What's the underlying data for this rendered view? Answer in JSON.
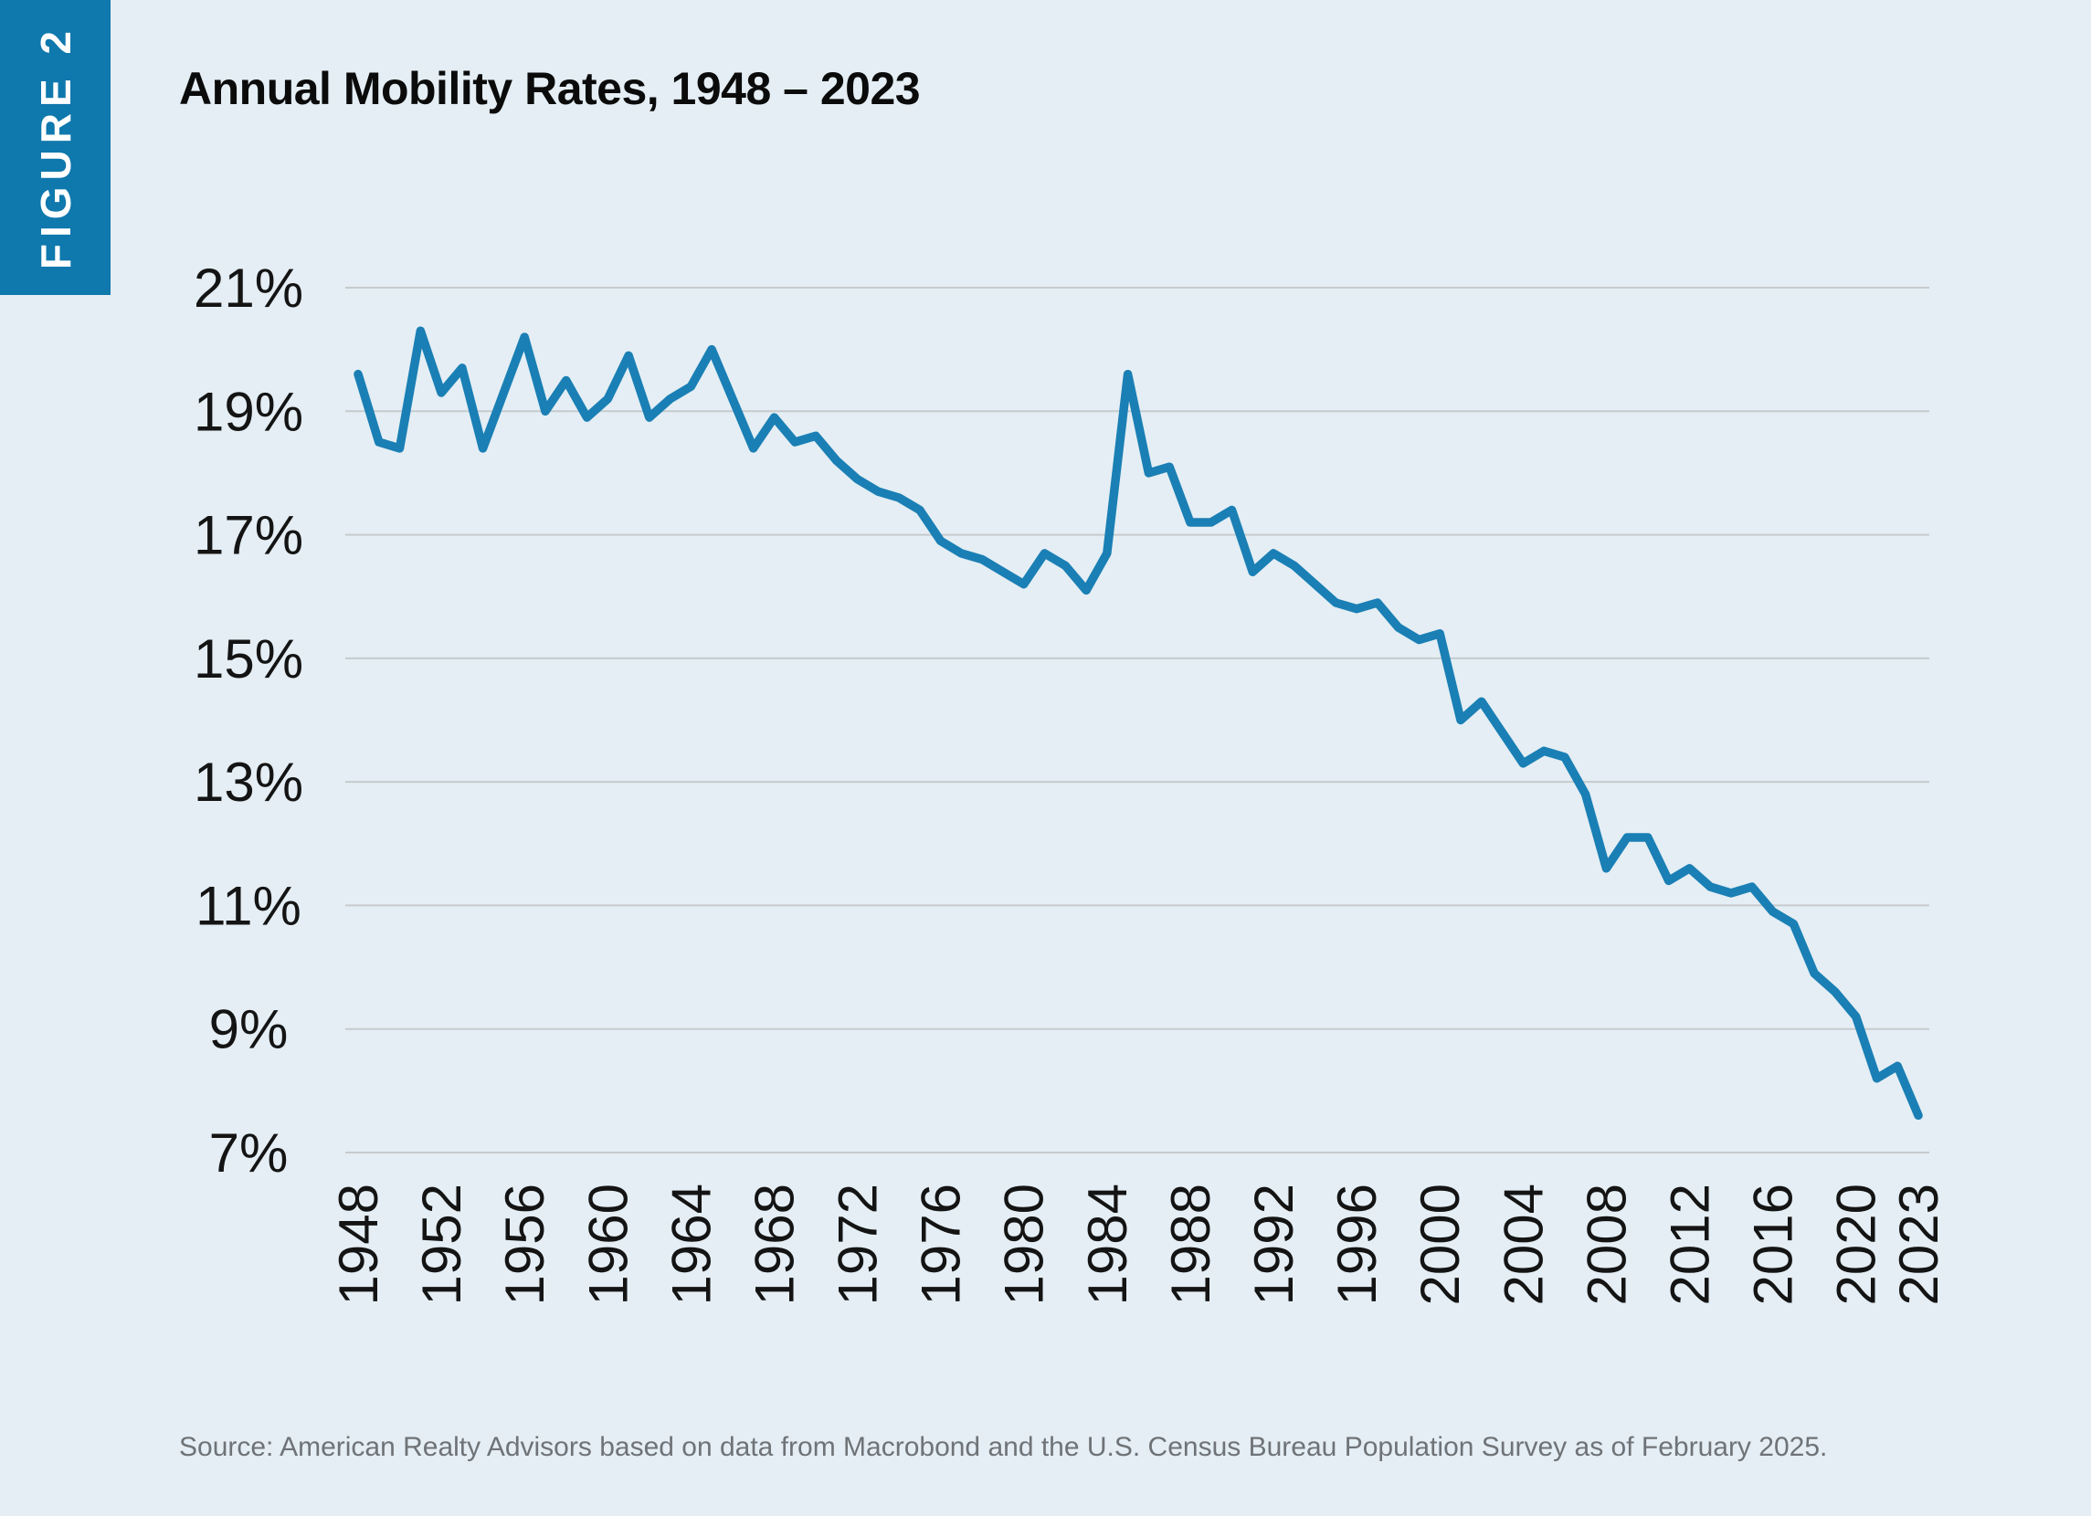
{
  "figure_label": "FIGURE 2",
  "title": "Annual Mobility Rates, 1948 – 2023",
  "source": "Source: American Realty Advisors based on data from Macrobond and the U.S. Census Bureau Population Survey as of February 2025.",
  "colors": {
    "page_bg": "#e4eef4",
    "tab_bg": "#0f78ad",
    "tab_text": "#ffffff",
    "line": "#1a7fb4",
    "grid": "#c6cbce",
    "axis_text": "#141414",
    "title_text": "#0b0b0b",
    "source_text": "#6f7377"
  },
  "chart_data": {
    "type": "line",
    "title": "Annual Mobility Rates, 1948 – 2023",
    "series_name": "Annual mobility rate",
    "unit": "%",
    "grid": "horizontal",
    "legend": "none",
    "ylim": [
      7,
      21
    ],
    "yticks": [
      21,
      19,
      17,
      15,
      13,
      11,
      9,
      7
    ],
    "ytick_suffix": "%",
    "xticks": [
      1948,
      1952,
      1956,
      1960,
      1964,
      1968,
      1972,
      1976,
      1980,
      1984,
      1988,
      1992,
      1996,
      2000,
      2004,
      2008,
      2012,
      2016,
      2020,
      2023
    ],
    "years": [
      1948,
      1949,
      1950,
      1951,
      1952,
      1953,
      1954,
      1955,
      1956,
      1957,
      1958,
      1959,
      1960,
      1961,
      1962,
      1963,
      1964,
      1965,
      1966,
      1967,
      1968,
      1969,
      1970,
      1971,
      1972,
      1973,
      1974,
      1975,
      1976,
      1977,
      1978,
      1979,
      1980,
      1981,
      1982,
      1983,
      1984,
      1985,
      1986,
      1987,
      1988,
      1989,
      1990,
      1991,
      1992,
      1993,
      1994,
      1995,
      1996,
      1997,
      1998,
      1999,
      2000,
      2001,
      2002,
      2003,
      2004,
      2005,
      2006,
      2007,
      2008,
      2009,
      2010,
      2011,
      2012,
      2013,
      2014,
      2015,
      2016,
      2017,
      2018,
      2019,
      2020,
      2021,
      2022,
      2023
    ],
    "values": [
      19.6,
      18.5,
      18.4,
      20.3,
      19.3,
      19.7,
      18.4,
      19.3,
      20.2,
      19.0,
      19.5,
      18.9,
      19.2,
      19.9,
      18.9,
      19.2,
      19.4,
      20.0,
      19.2,
      18.4,
      18.9,
      18.5,
      18.6,
      18.2,
      17.9,
      17.7,
      17.6,
      17.4,
      16.9,
      16.7,
      16.6,
      16.4,
      16.2,
      16.7,
      16.5,
      16.1,
      16.7,
      19.6,
      18.0,
      18.1,
      17.2,
      17.2,
      17.4,
      16.4,
      16.7,
      16.5,
      16.2,
      15.9,
      15.8,
      15.9,
      15.5,
      15.3,
      15.4,
      14.0,
      14.3,
      13.8,
      13.3,
      13.5,
      13.4,
      12.8,
      11.6,
      12.1,
      12.1,
      11.4,
      11.6,
      11.3,
      11.2,
      11.3,
      10.9,
      10.7,
      9.9,
      9.6,
      9.2,
      8.2,
      8.4,
      7.6
    ]
  }
}
